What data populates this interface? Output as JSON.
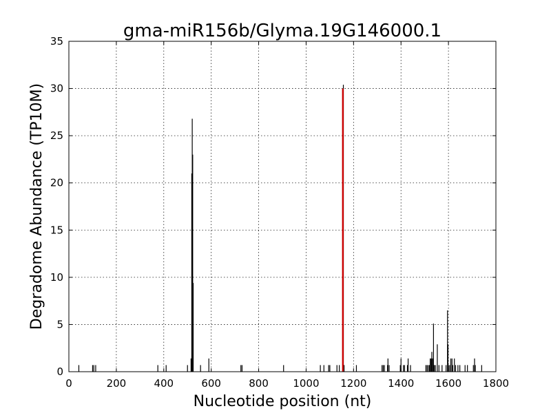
{
  "chart_data": {
    "type": "bar",
    "title": "gma-miR156b/Glyma.19G146000.1",
    "xlabel": "Nucleotide position (nt)",
    "ylabel": "Degradome Abundance (TP10M)",
    "xlim": [
      0,
      1800
    ],
    "ylim": [
      0,
      35
    ],
    "xticks": [
      0,
      200,
      400,
      600,
      800,
      1000,
      1200,
      1400,
      1600,
      1800
    ],
    "yticks": [
      0,
      5,
      10,
      15,
      20,
      25,
      30,
      35
    ],
    "grid": true,
    "colors": {
      "series": "#000000",
      "highlight": "#cc0000"
    },
    "series": [
      {
        "points": [
          [
            42,
            0.7
          ],
          [
            100,
            0.7
          ],
          [
            105,
            0.7
          ],
          [
            113,
            0.7
          ],
          [
            375,
            0.7
          ],
          [
            410,
            0.7
          ],
          [
            500,
            0.7
          ],
          [
            515,
            1.4
          ],
          [
            518,
            21.0
          ],
          [
            520,
            26.8
          ],
          [
            522,
            23.0
          ],
          [
            524,
            9.4
          ],
          [
            555,
            0.7
          ],
          [
            590,
            1.4
          ],
          [
            725,
            0.7
          ],
          [
            730,
            0.7
          ],
          [
            905,
            0.7
          ],
          [
            1060,
            0.7
          ],
          [
            1075,
            0.7
          ],
          [
            1095,
            0.7
          ],
          [
            1100,
            0.7
          ],
          [
            1130,
            0.7
          ],
          [
            1140,
            0.7
          ],
          [
            1157,
            30.4
          ],
          [
            1160,
            0.7
          ],
          [
            1212,
            0.7
          ],
          [
            1320,
            0.7
          ],
          [
            1325,
            0.7
          ],
          [
            1330,
            0.7
          ],
          [
            1343,
            0.7
          ],
          [
            1345,
            1.4
          ],
          [
            1350,
            0.7
          ],
          [
            1397,
            0.7
          ],
          [
            1400,
            1.4
          ],
          [
            1410,
            0.7
          ],
          [
            1415,
            0.7
          ],
          [
            1427,
            0.7
          ],
          [
            1430,
            1.4
          ],
          [
            1440,
            0.7
          ],
          [
            1505,
            0.7
          ],
          [
            1510,
            0.7
          ],
          [
            1515,
            0.7
          ],
          [
            1520,
            0.7
          ],
          [
            1523,
            1.4
          ],
          [
            1527,
            1.4
          ],
          [
            1530,
            2.1
          ],
          [
            1533,
            1.4
          ],
          [
            1537,
            5.1
          ],
          [
            1540,
            0.7
          ],
          [
            1545,
            0.7
          ],
          [
            1553,
            2.9
          ],
          [
            1560,
            0.7
          ],
          [
            1573,
            0.7
          ],
          [
            1590,
            0.7
          ],
          [
            1596,
            6.5
          ],
          [
            1598,
            2.9
          ],
          [
            1600,
            0.7
          ],
          [
            1605,
            0.7
          ],
          [
            1610,
            1.4
          ],
          [
            1615,
            1.4
          ],
          [
            1618,
            0.7
          ],
          [
            1625,
            1.4
          ],
          [
            1630,
            0.7
          ],
          [
            1640,
            0.7
          ],
          [
            1648,
            0.7
          ],
          [
            1670,
            0.7
          ],
          [
            1680,
            0.7
          ],
          [
            1705,
            0.7
          ],
          [
            1710,
            1.4
          ],
          [
            1713,
            0.7
          ],
          [
            1740,
            0.7
          ]
        ]
      }
    ],
    "highlight": {
      "x": 1155,
      "y": 30
    }
  }
}
